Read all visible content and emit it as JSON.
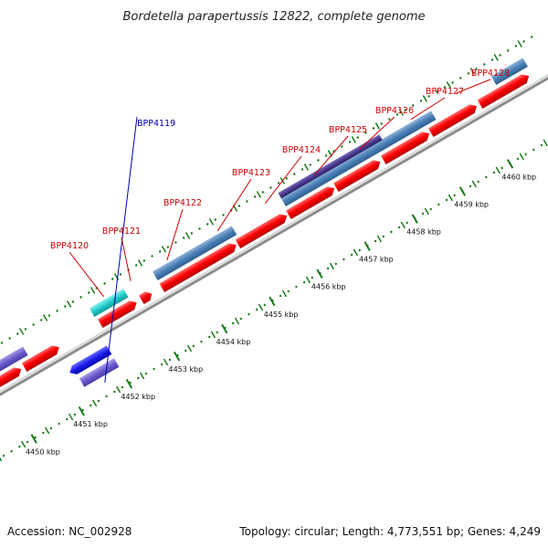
{
  "header": {
    "title": "Bordetella parapertussis 12822, complete genome"
  },
  "footer": {
    "accession": "Accession: NC_002928",
    "summary": "Topology: circular; Length: 4,773,551 bp; Genes: 4,249"
  },
  "colors": {
    "forward_cds": "#ff0000",
    "cds_blue": "#4a7fb5",
    "cds_cyan": "#22cccc",
    "cds_violet": "#6a5acd",
    "cds_navy": "#4b3a8f",
    "cds_royal": "#1a1aee",
    "cds_gray": "#c8c8c8",
    "tick_green": "#1a7a1a",
    "backbone": "#999999",
    "label_forward": "#cc0000",
    "label_reverse": "#0000aa"
  },
  "scale": {
    "unit": "kbp",
    "labels": [
      "4450 kbp",
      "4451 kbp",
      "4452 kbp",
      "4453 kbp",
      "4454 kbp",
      "4455 kbp",
      "4456 kbp",
      "4457 kbp",
      "4458 kbp",
      "4459 kbp",
      "4460 kbp"
    ],
    "kbp_values": [
      4450,
      4451,
      4452,
      4453,
      4454,
      4455,
      4456,
      4457,
      4458,
      4459,
      4460
    ]
  },
  "gene_labels": [
    {
      "name": "BPP4119",
      "kind": "reverse"
    },
    {
      "name": "BPP4120",
      "kind": "forward"
    },
    {
      "name": "BPP4121",
      "kind": "forward"
    },
    {
      "name": "BPP4122",
      "kind": "forward"
    },
    {
      "name": "BPP4123",
      "kind": "forward"
    },
    {
      "name": "BPP4124",
      "kind": "forward"
    },
    {
      "name": "BPP4125",
      "kind": "forward"
    },
    {
      "name": "BPP4126",
      "kind": "forward"
    },
    {
      "name": "BPP4127",
      "kind": "forward"
    },
    {
      "name": "BPP4128",
      "kind": "forward"
    }
  ]
}
